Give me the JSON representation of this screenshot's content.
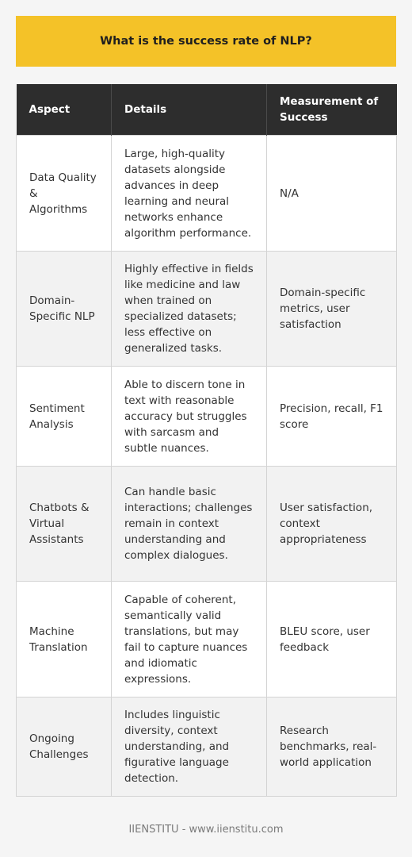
{
  "title": "What is the success rate of NLP?",
  "table": {
    "headers": [
      "Aspect",
      "Details",
      "Measurement of Success"
    ],
    "rows": [
      {
        "aspect": "Data Quality & Algorithms",
        "details": "Large, high-quality datasets alongside advances in deep learning and neural networks enhance algorithm performance.",
        "measurement": "N/A"
      },
      {
        "aspect": "Domain-Specific NLP",
        "details": "Highly effective in fields like medicine and law when trained on specialized datasets; less effective on generalized tasks.",
        "measurement": "Domain-specific metrics, user satisfaction"
      },
      {
        "aspect": "Sentiment Analysis",
        "details": "Able to discern tone in text with reasonable accuracy but struggles with sarcasm and subtle nuances.",
        "measurement": "Precision, recall, F1 score"
      },
      {
        "aspect": "Chatbots & Virtual Assistants",
        "details": "Can handle basic interactions; challenges remain in context understanding and complex dialogues.",
        "measurement": "User satisfaction, context appropriateness"
      },
      {
        "aspect": "Machine Translation",
        "details": "Capable of coherent, semantically valid translations, but may fail to capture nuances and idiomatic expressions.",
        "measurement": "BLEU score, user feedback"
      },
      {
        "aspect": "Ongoing Challenges",
        "details": "Includes linguistic diversity, context understanding, and figurative language detection.",
        "measurement": "Research benchmarks, real-world application"
      }
    ]
  },
  "footer": "IIENSTITU - www.iienstitu.com",
  "colors": {
    "title_bg": "#f4c228",
    "header_bg": "#2d2d2d",
    "row_alt_bg": "#f2f2f2",
    "page_bg": "#f5f5f5"
  }
}
